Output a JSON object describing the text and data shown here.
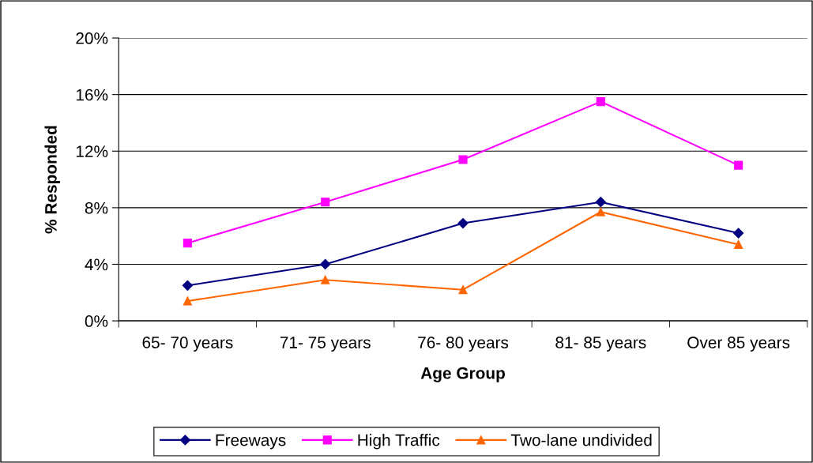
{
  "chart_data": {
    "type": "line",
    "xlabel": "Age Group",
    "ylabel": "% Responded",
    "categories": [
      "65- 70 years",
      "71- 75 years",
      "76- 80 years",
      "81- 85 years",
      "Over 85 years"
    ],
    "series": [
      {
        "name": "Freeways",
        "color": "#000080",
        "marker": "diamond",
        "values": [
          2.5,
          4.0,
          6.9,
          8.4,
          6.2
        ]
      },
      {
        "name": "High Traffic",
        "color": "#ff00ff",
        "marker": "square",
        "values": [
          5.5,
          8.4,
          11.4,
          15.5,
          11.0
        ]
      },
      {
        "name": "Two-lane undivided",
        "color": "#ff6600",
        "marker": "triangle",
        "values": [
          1.4,
          2.9,
          2.2,
          7.7,
          5.4
        ]
      }
    ],
    "ylim": [
      0,
      20
    ],
    "yticks": [
      {
        "value": 0,
        "label": "0%"
      },
      {
        "value": 4,
        "label": "4%"
      },
      {
        "value": 8,
        "label": "8%"
      },
      {
        "value": 12,
        "label": "12%"
      },
      {
        "value": 16,
        "label": "16%"
      },
      {
        "value": 20,
        "label": "20%"
      }
    ],
    "grid": "y",
    "legend": "bottom"
  }
}
